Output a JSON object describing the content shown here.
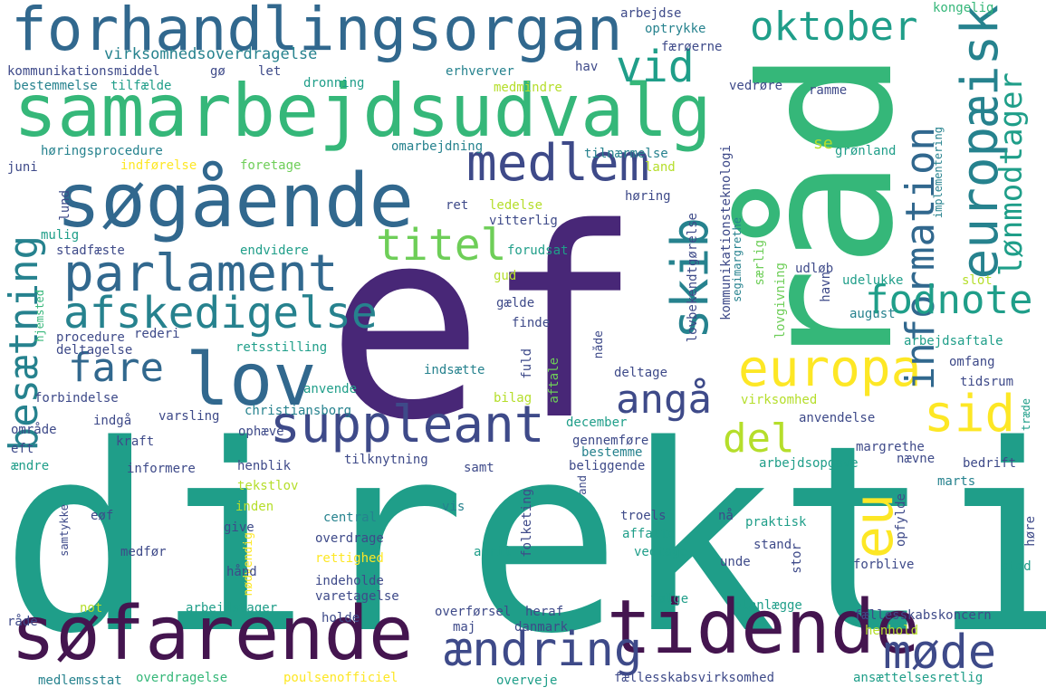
{
  "palette": {
    "dark_purple": "#44154f",
    "purple": "#482777",
    "indigo": "#3e4a89",
    "slate_blue": "#31688e",
    "steel_teal": "#26828e",
    "teal": "#1f9e89",
    "green": "#35b779",
    "lime": "#6ece58",
    "yellow_green": "#b5de2b",
    "yellow": "#fde725"
  },
  "words": [
    {
      "id": "direktiv",
      "text": "direktiv"
    },
    {
      "id": "ef",
      "text": "ef"
    },
    {
      "id": "rad",
      "text": "råd"
    },
    {
      "id": "samarbejdsudvalg",
      "text": "samarbejdsudvalg"
    },
    {
      "id": "forhandlingsorgan",
      "text": "forhandlingsorgan"
    },
    {
      "id": "sogaende",
      "text": "søgående"
    },
    {
      "id": "sofarende",
      "text": "søfarende"
    },
    {
      "id": "tidende",
      "text": "tidende"
    },
    {
      "id": "parlament",
      "text": "parlament"
    },
    {
      "id": "lov",
      "text": "lov"
    },
    {
      "id": "europa",
      "text": "europa"
    },
    {
      "id": "europaeisk",
      "text": "europæisk"
    },
    {
      "id": "medlem",
      "text": "medlem"
    },
    {
      "id": "suppleant",
      "text": "suppleant"
    },
    {
      "id": "afskedigelse",
      "text": "afskedigelse"
    },
    {
      "id": "oktober",
      "text": "oktober"
    },
    {
      "id": "skib",
      "text": "skib"
    },
    {
      "id": "sid",
      "text": "sid"
    },
    {
      "id": "eu",
      "text": "eu"
    },
    {
      "id": "mode",
      "text": "møde"
    },
    {
      "id": "aendring",
      "text": "ændring"
    },
    {
      "id": "information",
      "text": "information"
    },
    {
      "id": "lonmodtager",
      "text": "lønmodtager"
    },
    {
      "id": "fodnote",
      "text": "fodnote"
    },
    {
      "id": "titel",
      "text": "titel"
    },
    {
      "id": "besaetning",
      "text": "besætning"
    },
    {
      "id": "vid",
      "text": "vid"
    },
    {
      "id": "fare",
      "text": "fare"
    },
    {
      "id": "anga",
      "text": "angå"
    },
    {
      "id": "del",
      "text": "del"
    },
    {
      "id": "virksomhedsoverdragelse",
      "text": "virksomhedsoverdragelse"
    },
    {
      "id": "kommunikationsmiddel",
      "text": "kommunikationsmiddel"
    },
    {
      "id": "bestemmelse",
      "text": "bestemmelse"
    },
    {
      "id": "tilfaelde",
      "text": "tilfælde"
    },
    {
      "id": "go",
      "text": "gø"
    },
    {
      "id": "let",
      "text": "let"
    },
    {
      "id": "dronning",
      "text": "dronning"
    },
    {
      "id": "erhverver",
      "text": "erhverver"
    },
    {
      "id": "medmindre",
      "text": "medmindre"
    },
    {
      "id": "arbejdse",
      "text": "arbejdse"
    },
    {
      "id": "optrykke",
      "text": "optrykke"
    },
    {
      "id": "faeroerne",
      "text": "færøerne"
    },
    {
      "id": "kongelig",
      "text": "kongelig"
    },
    {
      "id": "hav",
      "text": "hav"
    },
    {
      "id": "vedrore",
      "text": "vedrøre"
    },
    {
      "id": "ramme",
      "text": "ramme"
    },
    {
      "id": "horingsprocedure",
      "text": "høringsprocedure"
    },
    {
      "id": "omarbejdning",
      "text": "omarbejdning"
    },
    {
      "id": "tilnaermelse",
      "text": "tilnærmelse"
    },
    {
      "id": "juni",
      "text": "juni"
    },
    {
      "id": "indforelse",
      "text": "indførelse"
    },
    {
      "id": "foretage",
      "text": "foretage"
    },
    {
      "id": "land",
      "text": "land"
    },
    {
      "id": "se",
      "text": "se"
    },
    {
      "id": "gronland",
      "text": "grønland"
    },
    {
      "id": "implementering",
      "text": "implementering"
    },
    {
      "id": "kommunikationsteknologi",
      "text": "kommunikationsteknologi"
    },
    {
      "id": "lund",
      "text": "lund"
    },
    {
      "id": "ret",
      "text": "ret"
    },
    {
      "id": "ledelse",
      "text": "ledelse"
    },
    {
      "id": "horing",
      "text": "høring"
    },
    {
      "id": "vitterlig",
      "text": "vitterlig"
    },
    {
      "id": "mulig",
      "text": "mulig"
    },
    {
      "id": "stadfaeste",
      "text": "stadfæste"
    },
    {
      "id": "endvidere",
      "text": "endvidere"
    },
    {
      "id": "forudsat",
      "text": "forudsat"
    },
    {
      "id": "lovbekendtgorelse",
      "text": "lovbekendtgørelse"
    },
    {
      "id": "segimargrethe",
      "text": "segimargrethe"
    },
    {
      "id": "saerlig",
      "text": "særlig"
    },
    {
      "id": "udlob",
      "text": "udløb"
    },
    {
      "id": "hjemsted",
      "text": "hjemsted"
    },
    {
      "id": "gud",
      "text": "gud"
    },
    {
      "id": "havn",
      "text": "havn"
    },
    {
      "id": "udelukke",
      "text": "udelukke"
    },
    {
      "id": "slot",
      "text": "slot"
    },
    {
      "id": "lovgivning",
      "text": "lovgivning"
    },
    {
      "id": "gaelde",
      "text": "gælde"
    },
    {
      "id": "august",
      "text": "august"
    },
    {
      "id": "finde",
      "text": "finde"
    },
    {
      "id": "procedure",
      "text": "procedure"
    },
    {
      "id": "rederi",
      "text": "rederi"
    },
    {
      "id": "nade",
      "text": "nåde"
    },
    {
      "id": "deltagelse",
      "text": "deltagelse"
    },
    {
      "id": "retsstilling",
      "text": "retsstilling"
    },
    {
      "id": "fuld",
      "text": "fuld"
    },
    {
      "id": "arbejdsaftale",
      "text": "arbejdsaftale"
    },
    {
      "id": "omfang",
      "text": "omfang"
    },
    {
      "id": "indsaette",
      "text": "indsætte"
    },
    {
      "id": "aftale",
      "text": "aftale"
    },
    {
      "id": "deltage",
      "text": "deltage"
    },
    {
      "id": "tidsrum",
      "text": "tidsrum"
    },
    {
      "id": "forbindelse",
      "text": "forbindelse"
    },
    {
      "id": "anvende",
      "text": "anvende"
    },
    {
      "id": "bilag",
      "text": "bilag"
    },
    {
      "id": "virksomhed",
      "text": "virksomhed"
    },
    {
      "id": "christiansborg",
      "text": "christiansborg"
    },
    {
      "id": "traede",
      "text": "træde"
    },
    {
      "id": "omrade",
      "text": "område"
    },
    {
      "id": "indga",
      "text": "indgå"
    },
    {
      "id": "varsling",
      "text": "varsling"
    },
    {
      "id": "december",
      "text": "december"
    },
    {
      "id": "anvendelse",
      "text": "anvendelse"
    },
    {
      "id": "eft",
      "text": "eft"
    },
    {
      "id": "kraft",
      "text": "kraft"
    },
    {
      "id": "ophaeve",
      "text": "ophæve"
    },
    {
      "id": "gennemfore",
      "text": "gennemføre"
    },
    {
      "id": "margrethe",
      "text": "margrethe"
    },
    {
      "id": "bestemme",
      "text": "bestemme"
    },
    {
      "id": "aendre",
      "text": "ændre"
    },
    {
      "id": "informere",
      "text": "informere"
    },
    {
      "id": "henblik",
      "text": "henblik"
    },
    {
      "id": "tilknytning",
      "text": "tilknytning"
    },
    {
      "id": "samt",
      "text": "samt"
    },
    {
      "id": "beliggende",
      "text": "beliggende"
    },
    {
      "id": "arbejdsopgave",
      "text": "arbejdsopgave"
    },
    {
      "id": "naevne",
      "text": "nævne"
    },
    {
      "id": "bedrift",
      "text": "bedrift"
    },
    {
      "id": "tekstlov",
      "text": "tekstlov"
    },
    {
      "id": "and",
      "text": "and"
    },
    {
      "id": "marts",
      "text": "marts"
    },
    {
      "id": "inden",
      "text": "inden"
    },
    {
      "id": "eof",
      "text": "eøf"
    },
    {
      "id": "give",
      "text": "give"
    },
    {
      "id": "central",
      "text": "central"
    },
    {
      "id": "vis",
      "text": "vis"
    },
    {
      "id": "troels",
      "text": "troels"
    },
    {
      "id": "na",
      "text": "nå"
    },
    {
      "id": "opfylde",
      "text": "opfylde"
    },
    {
      "id": "hore",
      "text": "høre"
    },
    {
      "id": "samtykke",
      "text": "samtykke"
    },
    {
      "id": "medfor",
      "text": "medfør"
    },
    {
      "id": "overdrage",
      "text": "overdrage"
    },
    {
      "id": "folketing",
      "text": "folketing"
    },
    {
      "id": "praktisk",
      "text": "praktisk"
    },
    {
      "id": "affatte",
      "text": "affatte"
    },
    {
      "id": "vedtage",
      "text": "vedtage"
    },
    {
      "id": "stand",
      "text": "stand"
    },
    {
      "id": "rettighed",
      "text": "rettighed"
    },
    {
      "id": "nodvendig",
      "text": "nødvendig"
    },
    {
      "id": "april",
      "text": "april"
    },
    {
      "id": "unde",
      "text": "unde"
    },
    {
      "id": "stor",
      "text": "stor"
    },
    {
      "id": "forblive",
      "text": "forblive"
    },
    {
      "id": "sted",
      "text": "sted"
    },
    {
      "id": "hand",
      "text": "hånd"
    },
    {
      "id": "indeholde",
      "text": "indeholde"
    },
    {
      "id": "varetagelse",
      "text": "varetagelse"
    },
    {
      "id": "arbejdstager",
      "text": "arbejdstager"
    },
    {
      "id": "not",
      "text": "not"
    },
    {
      "id": "overforsel",
      "text": "overførsel"
    },
    {
      "id": "heraf",
      "text": "heraf"
    },
    {
      "id": "folge",
      "text": "følge"
    },
    {
      "id": "planlaegge",
      "text": "planlægge"
    },
    {
      "id": "faellesskabskoncern",
      "text": "fællesskabskoncern"
    },
    {
      "id": "rade",
      "text": "råde"
    },
    {
      "id": "holde",
      "text": "holde"
    },
    {
      "id": "maj",
      "text": "maj"
    },
    {
      "id": "danmark",
      "text": "danmark"
    },
    {
      "id": "henhold",
      "text": "henhold"
    },
    {
      "id": "medlemsstat",
      "text": "medlemsstat"
    },
    {
      "id": "overdragelse",
      "text": "overdragelse"
    },
    {
      "id": "poulsenofficiel",
      "text": "poulsenofficiel"
    },
    {
      "id": "overveje",
      "text": "overveje"
    },
    {
      "id": "faellesskabsvirksomhed",
      "text": "fællesskabsvirksomhed"
    },
    {
      "id": "ansaettelsesretlig",
      "text": "ansættelsesretlig"
    }
  ]
}
